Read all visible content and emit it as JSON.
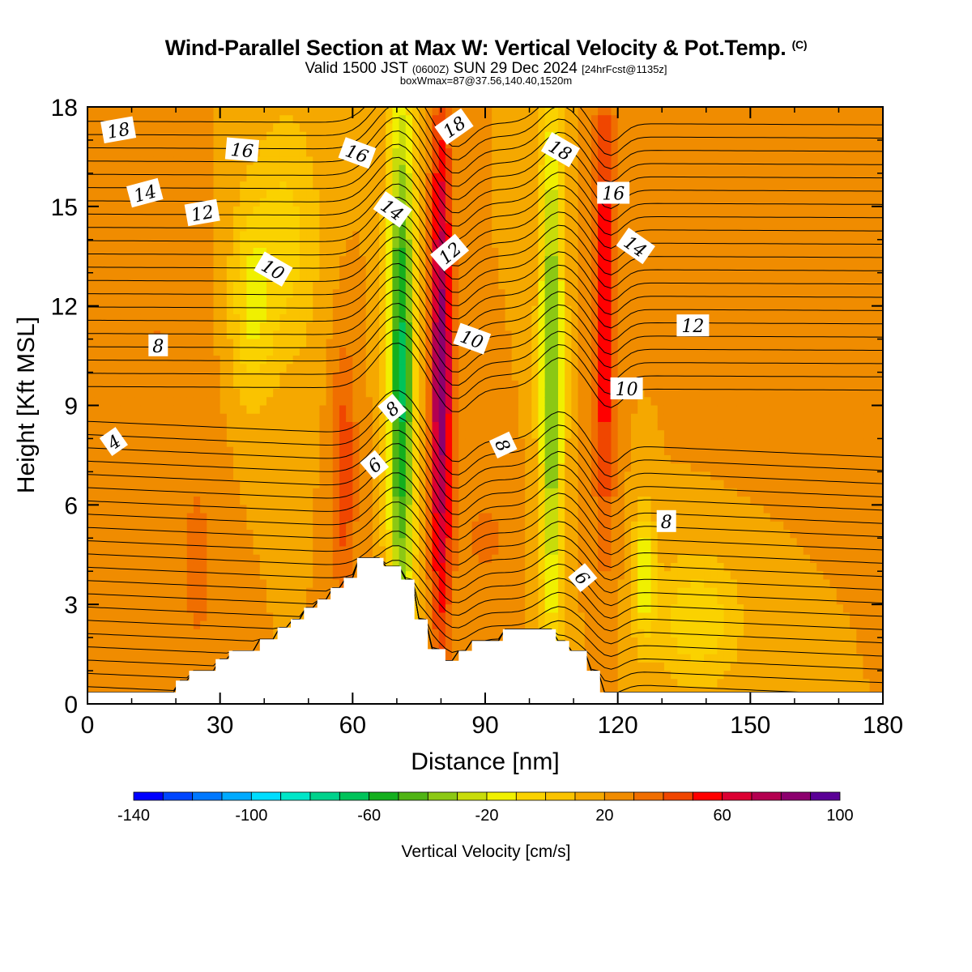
{
  "title": {
    "main": "Wind-Parallel Section at Max W: Vertical Velocity & Pot.Temp.",
    "mark": "(C)",
    "valid_prefix": "Valid 1500 JST",
    "valid_utc": "(0600Z)",
    "valid_date": "SUN 29 Dec 2024",
    "forecast": "[24hrFcst@1135z]",
    "box": "boxWmax=87@37.56,140.40,1520m"
  },
  "colors": {
    "background": "#ffffff",
    "terrain": "#ffffff",
    "contour": "#000000",
    "default_fill": "#f5a800"
  },
  "chart_data": {
    "type": "heatmap",
    "xlabel": "Distance [nm]",
    "ylabel": "Height [Kft MSL]",
    "xlim": [
      0,
      180
    ],
    "ylim": [
      0,
      18
    ],
    "x_ticks": [
      "0",
      "30",
      "60",
      "90",
      "120",
      "150",
      "180"
    ],
    "y_ticks": [
      "0",
      "3",
      "6",
      "9",
      "12",
      "15",
      "18"
    ],
    "colorbar": {
      "label": "Vertical Velocity [cm/s]",
      "tick_labels": [
        "-140",
        "-100",
        "-60",
        "-20",
        "20",
        "60",
        "100"
      ],
      "min": -140,
      "max": 100,
      "step": 10,
      "colors": [
        "#0000ff",
        "#0046ff",
        "#0078ff",
        "#00aaff",
        "#00ddff",
        "#00e6c8",
        "#00d28c",
        "#00c35a",
        "#14af1e",
        "#50b414",
        "#8cc814",
        "#c8dc0a",
        "#f0f000",
        "#fad200",
        "#fac300",
        "#f5a800",
        "#f08c00",
        "#f06e00",
        "#f04600",
        "#ff0000",
        "#dc0032",
        "#b40050",
        "#8c006e",
        "#5a0096"
      ]
    },
    "terrain_profile_kft": [
      [
        0,
        0.35
      ],
      [
        20,
        0.35
      ],
      [
        20,
        0.7
      ],
      [
        23,
        0.7
      ],
      [
        23,
        1.0
      ],
      [
        29,
        1.0
      ],
      [
        29,
        1.35
      ],
      [
        32,
        1.35
      ],
      [
        32,
        1.6
      ],
      [
        39,
        1.6
      ],
      [
        39,
        1.95
      ],
      [
        43,
        1.95
      ],
      [
        43,
        2.3
      ],
      [
        46,
        2.3
      ],
      [
        46,
        2.55
      ],
      [
        49,
        2.55
      ],
      [
        49,
        2.9
      ],
      [
        52,
        2.9
      ],
      [
        52,
        3.15
      ],
      [
        55,
        3.15
      ],
      [
        55,
        3.5
      ],
      [
        58,
        3.5
      ],
      [
        58,
        3.8
      ],
      [
        61,
        3.8
      ],
      [
        61,
        4.4
      ],
      [
        67,
        4.4
      ],
      [
        67,
        4.15
      ],
      [
        71,
        4.15
      ],
      [
        71,
        3.75
      ],
      [
        74,
        3.75
      ],
      [
        74,
        2.55
      ],
      [
        77,
        2.55
      ],
      [
        77,
        1.65
      ],
      [
        81,
        1.65
      ],
      [
        81,
        1.3
      ],
      [
        84,
        1.3
      ],
      [
        84,
        1.6
      ],
      [
        87,
        1.6
      ],
      [
        87,
        1.9
      ],
      [
        94,
        1.9
      ],
      [
        94,
        2.25
      ],
      [
        106,
        2.25
      ],
      [
        106,
        1.9
      ],
      [
        109,
        1.9
      ],
      [
        109,
        1.6
      ],
      [
        113,
        1.6
      ],
      [
        113,
        1.0
      ],
      [
        116,
        1.0
      ],
      [
        116,
        0.35
      ],
      [
        180,
        0.35
      ]
    ],
    "velocity_features": [
      {
        "x": 0,
        "y": 9,
        "value": 20,
        "sx": 70,
        "sy": 40
      },
      {
        "x": 16,
        "y": 11,
        "value": 28,
        "sx": 10,
        "sy": 4
      },
      {
        "x": 25,
        "y": 4,
        "value": 30,
        "sx": 6,
        "sy": 4
      },
      {
        "x": 37,
        "y": 12,
        "value": -10,
        "sx": 5,
        "sy": 3
      },
      {
        "x": 45,
        "y": 14,
        "value": -5,
        "sx": 8,
        "sy": 4
      },
      {
        "x": 58,
        "y": 7,
        "value": 45,
        "sx": 3,
        "sy": 4
      },
      {
        "x": 71,
        "y": 10,
        "value": -65,
        "sx": 3.2,
        "sy": 9
      },
      {
        "x": 80,
        "y": 10,
        "value": 85,
        "sx": 2.5,
        "sy": 8
      },
      {
        "x": 90,
        "y": 5,
        "value": 30,
        "sx": 6,
        "sy": 2
      },
      {
        "x": 105,
        "y": 10,
        "value": -45,
        "sx": 2.8,
        "sy": 9
      },
      {
        "x": 117,
        "y": 12,
        "value": 60,
        "sx": 2.6,
        "sy": 7
      },
      {
        "x": 126,
        "y": 4,
        "value": -20,
        "sx": 2.5,
        "sy": 2
      },
      {
        "x": 138,
        "y": 2.5,
        "value": -10,
        "sx": 10,
        "sy": 2
      },
      {
        "x": 150,
        "y": 12,
        "value": 20,
        "sx": 12,
        "sy": 4
      }
    ],
    "theta_contour_labels": [
      {
        "text": "4",
        "x": 6,
        "y": 7.9,
        "angle": -35
      },
      {
        "text": "6",
        "x": 65,
        "y": 7.2,
        "angle": -40
      },
      {
        "text": "6",
        "x": 112,
        "y": 3.8,
        "angle": 50
      },
      {
        "text": "8",
        "x": 16,
        "y": 10.8,
        "angle": 0
      },
      {
        "text": "8",
        "x": 69,
        "y": 8.9,
        "angle": -40
      },
      {
        "text": "8",
        "x": 94,
        "y": 7.8,
        "angle": 65
      },
      {
        "text": "8",
        "x": 131,
        "y": 5.5,
        "angle": 0
      },
      {
        "text": "10",
        "x": 42,
        "y": 13.1,
        "angle": 30
      },
      {
        "text": "10",
        "x": 87,
        "y": 11.0,
        "angle": 20
      },
      {
        "text": "10",
        "x": 122,
        "y": 9.5,
        "angle": 0
      },
      {
        "text": "12",
        "x": 26,
        "y": 14.8,
        "angle": -10
      },
      {
        "text": "12",
        "x": 82,
        "y": 13.6,
        "angle": -40
      },
      {
        "text": "12",
        "x": 137,
        "y": 11.4,
        "angle": 0
      },
      {
        "text": "14",
        "x": 13,
        "y": 15.4,
        "angle": -15
      },
      {
        "text": "14",
        "x": 69,
        "y": 14.9,
        "angle": 35
      },
      {
        "text": "14",
        "x": 124,
        "y": 13.8,
        "angle": 35
      },
      {
        "text": "16",
        "x": 35,
        "y": 16.7,
        "angle": 5
      },
      {
        "text": "16",
        "x": 61,
        "y": 16.6,
        "angle": 20
      },
      {
        "text": "16",
        "x": 119,
        "y": 15.4,
        "angle": 0
      },
      {
        "text": "18",
        "x": 7,
        "y": 17.3,
        "angle": -10
      },
      {
        "text": "18",
        "x": 83,
        "y": 17.4,
        "angle": -35
      },
      {
        "text": "18",
        "x": 107,
        "y": 16.7,
        "angle": 30
      }
    ]
  }
}
